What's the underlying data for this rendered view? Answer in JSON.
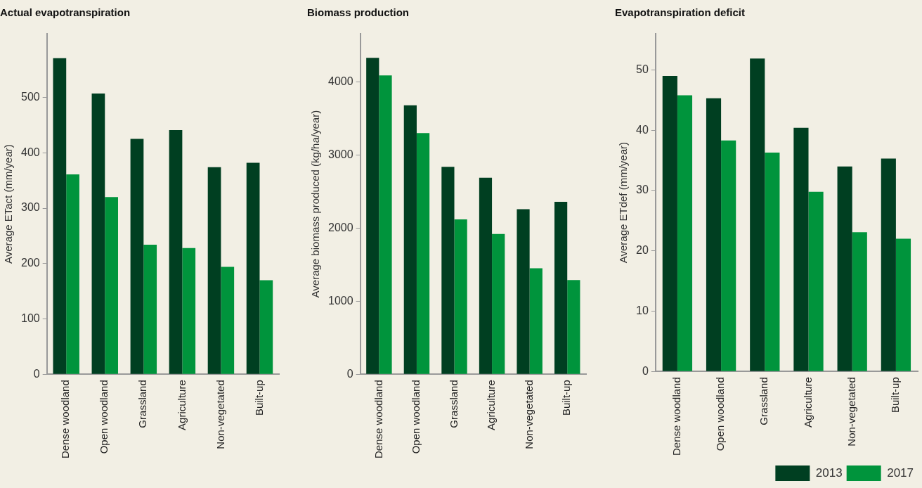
{
  "chart_data": [
    {
      "type": "bar",
      "title": "Actual evapotranspiration",
      "ylabel": "Average ETact (mm/year)",
      "categories": [
        "Dense woodland",
        "Open woodland",
        "Grassland",
        "Agriculture",
        "Non-vegetated",
        "Built-up"
      ],
      "series": [
        {
          "color": "#003f21",
          "values": [
            571,
            507,
            425,
            441,
            374,
            382
          ]
        },
        {
          "color": "#00943c",
          "values": [
            361,
            320,
            234,
            228,
            194,
            170
          ]
        }
      ],
      "ylim": [
        0,
        615
      ],
      "yticks": [
        0,
        100,
        200,
        300,
        400,
        500
      ],
      "grid": false,
      "legend": false
    },
    {
      "type": "bar",
      "title": "Biomass production",
      "ylabel": "Average biomass produced (kg/ha/year)",
      "categories": [
        "Dense woodland",
        "Open woodland",
        "Grassland",
        "Agriculture",
        "Non-vegetated",
        "Built-up"
      ],
      "series": [
        {
          "color": "#003f21",
          "values": [
            4330,
            3680,
            2840,
            2690,
            2260,
            2360
          ]
        },
        {
          "color": "#00943c",
          "values": [
            4090,
            3300,
            2120,
            1920,
            1450,
            1290
          ]
        }
      ],
      "ylim": [
        0,
        4660
      ],
      "yticks": [
        0,
        1000,
        2000,
        3000,
        4000
      ],
      "grid": false,
      "legend": false
    },
    {
      "type": "bar",
      "title": "Evapotranspiration deficit",
      "ylabel": "Average ETdef (mm/year)",
      "categories": [
        "Dense woodland",
        "Open woodland",
        "Grassland",
        "Agriculture",
        "Non-vegetated",
        "Built-up"
      ],
      "series": [
        {
          "name": "2013",
          "color": "#003f21",
          "values": [
            49.0,
            45.3,
            51.9,
            40.4,
            34.0,
            35.3
          ]
        },
        {
          "name": "2017",
          "color": "#00943c",
          "values": [
            45.8,
            38.3,
            36.3,
            29.8,
            23.1,
            22.0
          ]
        }
      ],
      "ylim": [
        0,
        56
      ],
      "yticks": [
        0,
        10,
        20,
        30,
        40,
        50
      ],
      "grid": false,
      "legend": "bottom right"
    }
  ]
}
